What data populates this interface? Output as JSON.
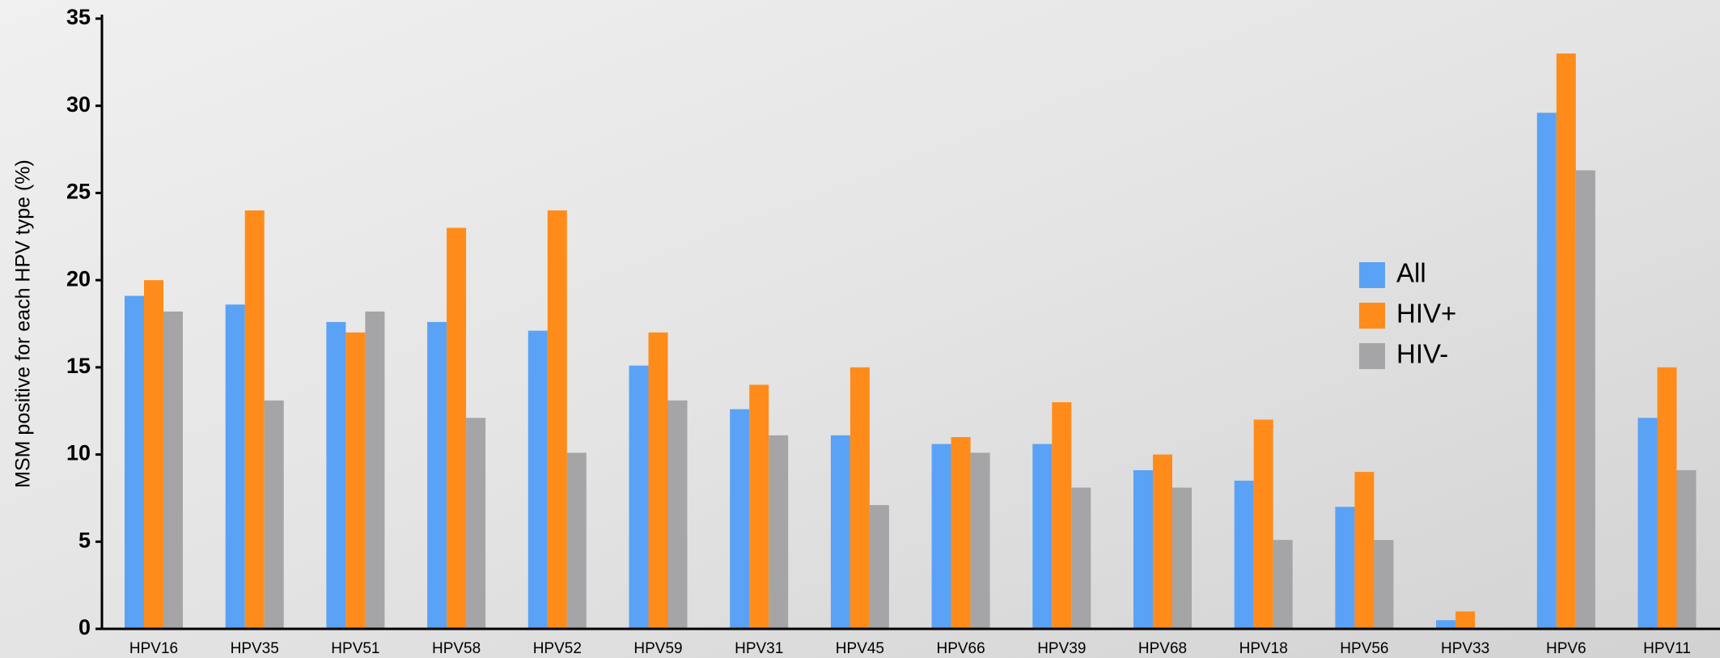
{
  "chart_data": {
    "type": "bar",
    "y_label": "MSM positive for each HPV type (%)",
    "categories": [
      "HPV16",
      "HPV35",
      "HPV51",
      "HPV58",
      "HPV52",
      "HPV59",
      "HPV31",
      "HPV45",
      "HPV66",
      "HPV39",
      "HPV68",
      "HPV18",
      "HPV56",
      "HPV33",
      "HPV6",
      "HPV11"
    ],
    "series": [
      {
        "name": "All",
        "color": "#5aa2f5",
        "values": [
          19.1,
          18.6,
          17.6,
          17.6,
          17.1,
          15.1,
          12.6,
          11.1,
          10.6,
          10.6,
          9.1,
          8.5,
          7.0,
          0.5,
          29.6,
          12.1
        ]
      },
      {
        "name": "HIV+",
        "color": "#ff8c1a",
        "values": [
          20,
          24,
          17,
          23,
          24,
          17,
          14,
          15,
          11,
          13,
          10,
          12,
          9,
          1,
          33,
          15
        ]
      },
      {
        "name": "HIV-",
        "color": "#a5a5a7",
        "values": [
          18.2,
          13.1,
          18.2,
          12.1,
          10.1,
          13.1,
          11.1,
          7.1,
          10.1,
          8.1,
          8.1,
          5.1,
          5.1,
          0,
          26.3,
          9.1
        ]
      }
    ],
    "ylim": [
      0,
      35
    ],
    "yticks": [
      0,
      5,
      10,
      15,
      20,
      25,
      30,
      35
    ],
    "grid": false
  }
}
